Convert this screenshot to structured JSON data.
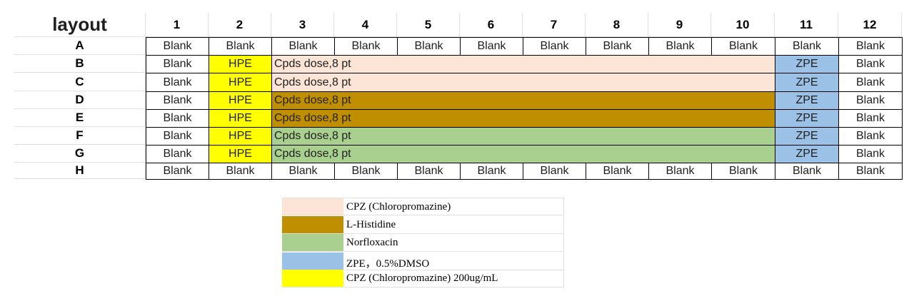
{
  "title": "layout",
  "columns": [
    "1",
    "2",
    "3",
    "4",
    "5",
    "6",
    "7",
    "8",
    "9",
    "10",
    "11",
    "12"
  ],
  "colors": {
    "cpz": "#FCE4D6",
    "his": "#BF8F00",
    "nor": "#A9D08E",
    "zpe": "#9BC2E6",
    "hpe": "#FFFF00",
    "none": "#FFFFFF"
  },
  "rows": [
    {
      "label": "A",
      "cells": [
        "Blank",
        "Blank",
        "Blank",
        "Blank",
        "Blank",
        "Blank",
        "Blank",
        "Blank",
        "Blank",
        "Blank",
        "Blank",
        "Blank"
      ],
      "fill": "none"
    },
    {
      "label": "B",
      "cells": [
        "Blank",
        "HPE",
        "Cpds dose,8 pt",
        "",
        "",
        "",
        "",
        "",
        "",
        "",
        "ZPE",
        "Blank"
      ],
      "fill": "cpz"
    },
    {
      "label": "C",
      "cells": [
        "Blank",
        "HPE",
        "Cpds dose,8 pt",
        "",
        "",
        "",
        "",
        "",
        "",
        "",
        "ZPE",
        "Blank"
      ],
      "fill": "cpz"
    },
    {
      "label": "D",
      "cells": [
        "Blank",
        "HPE",
        "Cpds dose,8 pt",
        "",
        "",
        "",
        "",
        "",
        "",
        "",
        "ZPE",
        "Blank"
      ],
      "fill": "his"
    },
    {
      "label": "E",
      "cells": [
        "Blank",
        "HPE",
        "Cpds dose,8 pt",
        "",
        "",
        "",
        "",
        "",
        "",
        "",
        "ZPE",
        "Blank"
      ],
      "fill": "his"
    },
    {
      "label": "F",
      "cells": [
        "Blank",
        "HPE",
        "Cpds dose,8 pt",
        "",
        "",
        "",
        "",
        "",
        "",
        "",
        "ZPE",
        "Blank"
      ],
      "fill": "nor"
    },
    {
      "label": "G",
      "cells": [
        "Blank",
        "HPE",
        "Cpds dose,8 pt",
        "",
        "",
        "",
        "",
        "",
        "",
        "",
        "ZPE",
        "Blank"
      ],
      "fill": "nor"
    },
    {
      "label": "H",
      "cells": [
        "Blank",
        "Blank",
        "Blank",
        "Blank",
        "Blank",
        "Blank",
        "Blank",
        "Blank",
        "Blank",
        "Blank",
        "Blank",
        "Blank"
      ],
      "fill": "none"
    }
  ],
  "legend": [
    {
      "color": "cpz",
      "label": "CPZ (Chloropromazine)"
    },
    {
      "color": "his",
      "label": "L-Histidine"
    },
    {
      "color": "nor",
      "label": "Norfloxacin"
    },
    {
      "color": "zpe",
      "label": "ZPE，0.5%DMSO"
    },
    {
      "color": "hpe",
      "label": "CPZ (Chloropromazine) 200ug/mL"
    }
  ]
}
